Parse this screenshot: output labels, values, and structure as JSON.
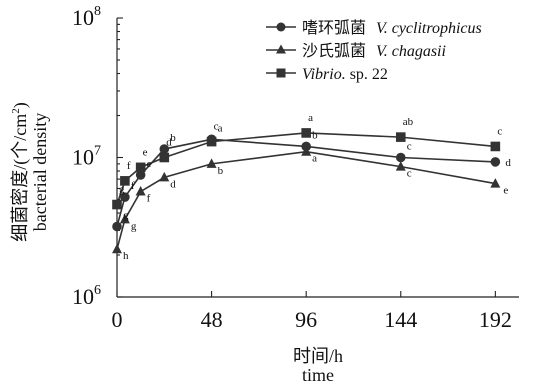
{
  "chart_data": {
    "type": "line",
    "y_scale": "log",
    "ylim": [
      1000000,
      100000000
    ],
    "xlim": [
      0,
      204
    ],
    "x_ticks": [
      0,
      48,
      96,
      144,
      192
    ],
    "x_tick_labels": [
      "0",
      "48",
      "96",
      "144",
      "192"
    ],
    "y_ticks": [
      {
        "value": 1000000,
        "base": "10",
        "exp": "6"
      },
      {
        "value": 10000000,
        "base": "10",
        "exp": "7"
      },
      {
        "value": 100000000,
        "base": "10",
        "exp": "8"
      }
    ],
    "xlabel_zh": "时间/h",
    "xlabel_en": "time",
    "ylabel_zh_main": "细菌密度/(个/cm",
    "ylabel_zh_sup": "2",
    "ylabel_zh_end": ")",
    "ylabel_en": "bacterial density",
    "legend_position": "top-right",
    "series": [
      {
        "key": "circle",
        "marker": "circle",
        "legend_zh": "嗜环弧菌",
        "legend_en": "V. cyclitrophicus",
        "legend_en_italic": true,
        "x": [
          0,
          4,
          12,
          24,
          48,
          96,
          144,
          192
        ],
        "y": [
          3200000,
          5200000,
          7500000,
          11500000,
          13500000,
          12000000,
          10000000,
          9300000
        ],
        "labels": [
          "g",
          "f",
          "e",
          "b",
          "a",
          "b",
          "c",
          "d"
        ]
      },
      {
        "key": "triangle",
        "marker": "triangle",
        "legend_zh": "沙氏弧菌",
        "legend_en": "V. chagasii",
        "legend_en_italic": true,
        "x": [
          0,
          4,
          12,
          24,
          48,
          96,
          144,
          192
        ],
        "y": [
          2200000,
          3600000,
          5700000,
          7200000,
          9000000,
          11000000,
          8600000,
          6500000
        ],
        "labels": [
          "h",
          "g",
          "f",
          "d",
          "b",
          "a",
          "c",
          "e"
        ]
      },
      {
        "key": "square",
        "marker": "square",
        "legend_zh": "",
        "legend_en_italic_part": "Vibrio.",
        "legend_en_plain_part": " sp. 22",
        "x": [
          0,
          4,
          12,
          24,
          48,
          96,
          144,
          192
        ],
        "y": [
          4600000,
          6800000,
          8500000,
          10000000,
          13000000,
          15000000,
          14000000,
          12000000
        ],
        "labels": [
          "g",
          "f",
          "e",
          "d",
          "c",
          "a",
          "ab",
          "c"
        ]
      }
    ]
  }
}
